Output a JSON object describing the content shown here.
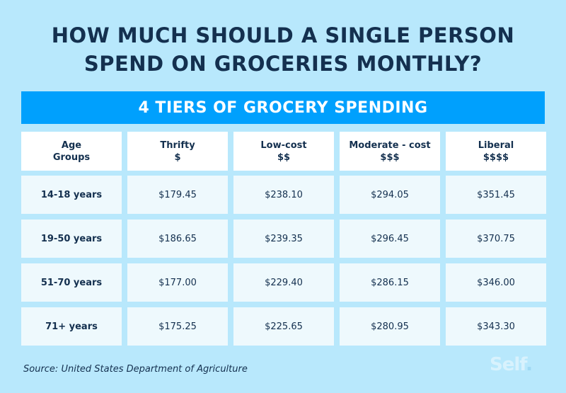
{
  "title_line1": "HOW MUCH SHOULD A SINGLE PERSON",
  "title_line2": "SPEND ON GROCERIES MONTHLY?",
  "banner": "4 TIERS OF GROCERY SPENDING",
  "source": "Source: United States Department of Agriculture",
  "logo": "Self.",
  "colors": {
    "background": "#b8e8fc",
    "banner": "#00a0fd",
    "text": "#14304f"
  },
  "chart_data": {
    "type": "table",
    "title": "4 TIERS OF GROCERY SPENDING",
    "headers": [
      {
        "line1": "Age",
        "line2": "Groups"
      },
      {
        "line1": "Thrifty",
        "line2": "$"
      },
      {
        "line1": "Low-cost",
        "line2": "$$"
      },
      {
        "line1": "Moderate - cost",
        "line2": "$$$"
      },
      {
        "line1": "Liberal",
        "line2": "$$$$"
      }
    ],
    "rows": [
      [
        "14-18 years",
        "$179.45",
        "$238.10",
        "$294.05",
        "$351.45"
      ],
      [
        "19-50 years",
        "$186.65",
        "$239.35",
        "$296.45",
        "$370.75"
      ],
      [
        "51-70 years",
        "$177.00",
        "$229.40",
        "$286.15",
        "$346.00"
      ],
      [
        "71+ years",
        "$175.25",
        "$225.65",
        "$280.95",
        "$343.30"
      ]
    ]
  }
}
